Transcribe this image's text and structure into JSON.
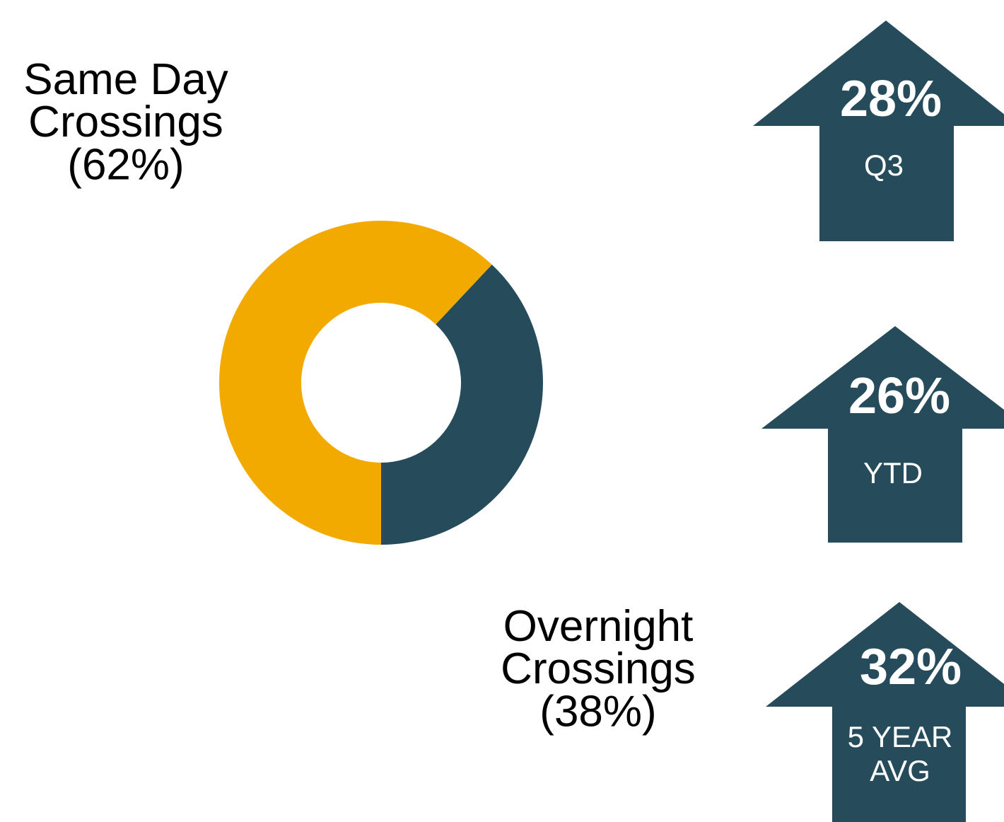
{
  "chart_data": {
    "type": "donut",
    "categories": [
      "Same Day Crossings",
      "Overnight Crossings"
    ],
    "values": [
      62,
      38
    ],
    "value_labels": [
      "(62%)",
      "(38%)"
    ],
    "colors": [
      "#f2aa00",
      "#264c5c"
    ]
  },
  "stats": [
    {
      "figure": "28%",
      "label": "Q3"
    },
    {
      "figure": "26%",
      "label": "YTD"
    },
    {
      "figure": "32%",
      "label": "5 YEAR AVG"
    }
  ]
}
